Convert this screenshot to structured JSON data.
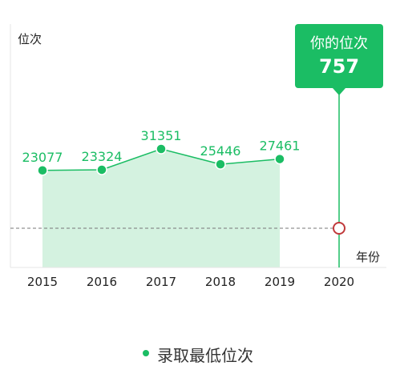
{
  "chart_data": {
    "type": "area",
    "ylabel": "位次",
    "xlabel": "年份",
    "x": [
      "2015",
      "2016",
      "2017",
      "2018",
      "2019",
      "2020"
    ],
    "series": [
      {
        "name": "录取最低位次",
        "x": [
          "2015",
          "2016",
          "2017",
          "2018",
          "2019"
        ],
        "values": [
          23077,
          23324,
          31351,
          25446,
          27461
        ]
      }
    ],
    "reference": {
      "label": "你的位次",
      "value": 757,
      "x": "2020"
    },
    "colors": {
      "accent": "#1bbd64",
      "fill": "#d4f2e0",
      "marker": "#c0393b",
      "dash": "#777777"
    },
    "grid": false,
    "legend_position": "bottom-center"
  }
}
